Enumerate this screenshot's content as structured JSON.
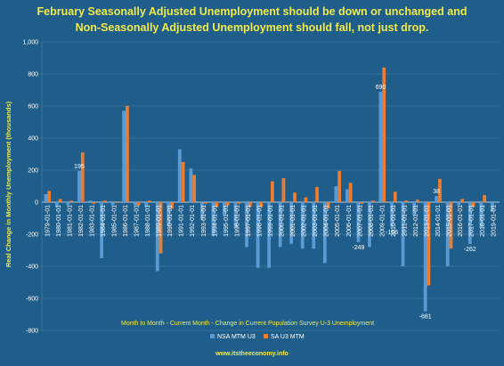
{
  "title_line1": "February Seasonally Adjusted Unemployment should be down or unchanged  and",
  "title_line2": "Non-Seasonally Adjusted Unemployment should fall, not just drop.",
  "subtitle": "Month to Month - Current Month - Change in Current Population Survey U-3 Unemployment",
  "source": "www.itstheeconomy.info",
  "colors": {
    "background": "#1f5e8a",
    "nsa": "#5b9bd5",
    "sa": "#ed7d31",
    "title": "#f2ea48",
    "grid": "#4d86ad"
  },
  "chart_data": {
    "type": "bar",
    "title": "February Seasonally Adjusted Unemployment should be down or unchanged  and Non-Seasonally Adjusted Unemployment should fall, not just drop.",
    "ylabel": "Real Change in Monthly Unemployment (thousands)",
    "ylim": [
      -800,
      1000
    ],
    "yticks": [
      -800,
      -600,
      -400,
      -200,
      0,
      200,
      400,
      600,
      800,
      1000
    ],
    "ytick_labels": [
      "-800",
      "-600",
      "-400",
      "-200",
      "0",
      "200",
      "400",
      "600",
      "800",
      "1,000"
    ],
    "grid": true,
    "legend": "bottom",
    "categories": [
      "1979-01-01",
      "1980-01-01",
      "1981-01-01",
      "1982-01-01",
      "1983-01-01",
      "1984-01-01",
      "1985-01-01",
      "1986-01-01",
      "1987-01-01",
      "1988-01-01",
      "1989-01-01",
      "1990-01-01",
      "1991-01-01",
      "1992-01-01",
      "1993-01-01",
      "1994-01-01",
      "1995-01-01",
      "1996-01-01",
      "1997-01-01",
      "1998-01-01",
      "1999-01-01",
      "2000-01-01",
      "2001-01-01",
      "2002-01-01",
      "2003-01-01",
      "2004-01-01",
      "2005-01-01",
      "2006-01-01",
      "2007-01-01",
      "2008-01-01",
      "2009-01-01",
      "2010-01-01",
      "2011-01-01",
      "2012-01-01",
      "2013-01-01",
      "2014-01-01",
      "2015-01-01",
      "2016-01-01",
      "2017-01-01",
      "2018-01-01",
      "2019-01-01"
    ],
    "series": [
      {
        "name": "NSA MTM U3",
        "values": [
          50,
          -30,
          -20,
          195,
          10,
          -350,
          -20,
          570,
          -20,
          -30,
          -430,
          -150,
          330,
          210,
          -110,
          -210,
          -80,
          -160,
          -280,
          -410,
          -410,
          -280,
          -260,
          -290,
          -290,
          -380,
          100,
          80,
          -249,
          -280,
          690,
          -156,
          -400,
          -80,
          -681,
          38,
          -400,
          -20,
          -262,
          -160,
          -60
        ]
      },
      {
        "name": "SA U3 MTM",
        "values": [
          70,
          20,
          10,
          310,
          -10,
          10,
          -5,
          600,
          -20,
          10,
          -320,
          -40,
          250,
          170,
          -10,
          -30,
          -20,
          -10,
          -30,
          -30,
          130,
          150,
          60,
          30,
          95,
          -40,
          195,
          120,
          -10,
          10,
          840,
          65,
          10,
          15,
          -520,
          145,
          -290,
          20,
          -30,
          45,
          0
        ]
      }
    ],
    "data_labels": [
      {
        "series": 0,
        "index": 3,
        "text": "195"
      },
      {
        "series": 0,
        "index": 28,
        "text": "-249"
      },
      {
        "series": 0,
        "index": 30,
        "text": "690"
      },
      {
        "series": 0,
        "index": 31,
        "text": "-156"
      },
      {
        "series": 0,
        "index": 34,
        "text": "-681"
      },
      {
        "series": 0,
        "index": 35,
        "text": "38"
      },
      {
        "series": 0,
        "index": 38,
        "text": "-262"
      }
    ]
  }
}
